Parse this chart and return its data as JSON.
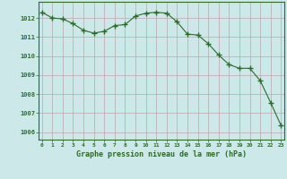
{
  "x": [
    0,
    1,
    2,
    3,
    4,
    5,
    6,
    7,
    8,
    9,
    10,
    11,
    12,
    13,
    14,
    15,
    16,
    17,
    18,
    19,
    20,
    21,
    22,
    23
  ],
  "y": [
    1012.3,
    1012.0,
    1011.95,
    1011.7,
    1011.35,
    1011.2,
    1011.3,
    1011.6,
    1011.65,
    1012.1,
    1012.25,
    1012.3,
    1012.25,
    1011.8,
    1011.15,
    1011.1,
    1010.65,
    1010.05,
    1009.55,
    1009.35,
    1009.35,
    1008.7,
    1007.55,
    1006.35
  ],
  "line_color": "#2d6a2d",
  "marker": "+",
  "marker_size": 4,
  "bg_color": "#cce8e8",
  "grid_color": "#b8a8a8",
  "text_color": "#2d6a2d",
  "xlabel": "Graphe pression niveau de la mer (hPa)",
  "ylim_min": 1005.6,
  "ylim_max": 1012.85,
  "yticks": [
    1006,
    1007,
    1008,
    1009,
    1010,
    1011,
    1012
  ],
  "xticks": [
    0,
    1,
    2,
    3,
    4,
    5,
    6,
    7,
    8,
    9,
    10,
    11,
    12,
    13,
    14,
    15,
    16,
    17,
    18,
    19,
    20,
    21,
    22,
    23
  ],
  "xlim_min": -0.3,
  "xlim_max": 23.3
}
